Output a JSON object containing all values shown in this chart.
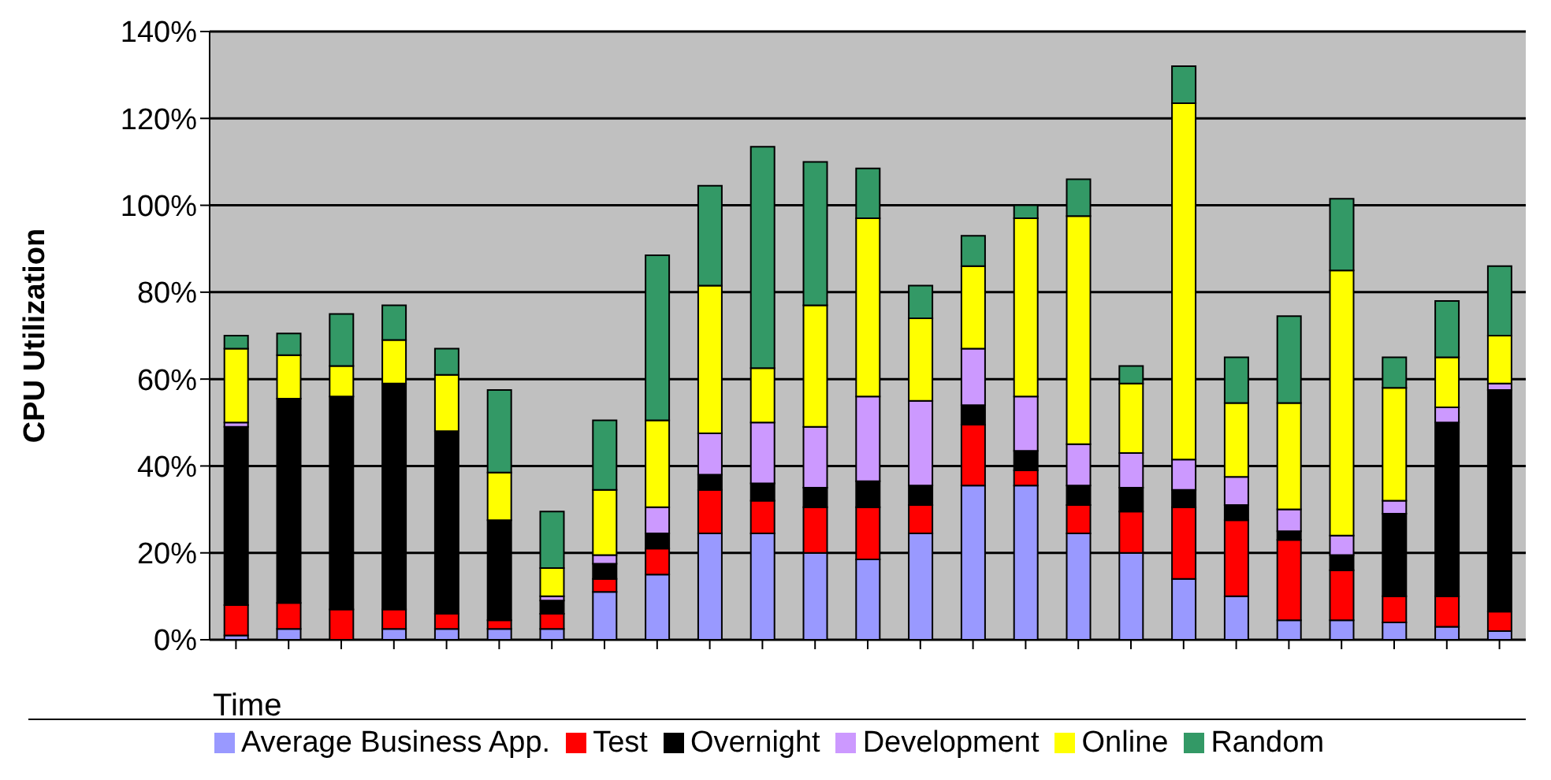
{
  "chart_data": {
    "type": "bar",
    "stacked": true,
    "xlabel": "Time",
    "ylabel": "CPU Utilization",
    "categories": [
      null,
      null,
      null,
      null,
      null,
      null,
      null,
      null,
      null,
      null,
      null,
      null,
      null,
      null,
      null,
      null,
      null,
      null,
      null,
      null,
      null,
      null,
      null,
      null,
      null
    ],
    "series": [
      {
        "name": "Average Business App.",
        "color": "#9999ff",
        "values": [
          1,
          2.5,
          0,
          2.5,
          2.5,
          2.5,
          2.5,
          11,
          15,
          24.5,
          24.5,
          20,
          18.5,
          24.5,
          35.5,
          35.5,
          24.5,
          20,
          14,
          10,
          4.5,
          4.5,
          4,
          3,
          2
        ]
      },
      {
        "name": "Test",
        "color": "#ff0000",
        "values": [
          7,
          6,
          7,
          4.5,
          3.5,
          2,
          3.5,
          3,
          6,
          10,
          7.5,
          10.5,
          12,
          6.5,
          14,
          3.5,
          6.5,
          9.5,
          16.5,
          17.5,
          18.5,
          11.5,
          6,
          7,
          4.5
        ]
      },
      {
        "name": "Overnight",
        "color": "#000000",
        "values": [
          41,
          47,
          49,
          52,
          42,
          23,
          3,
          3.5,
          3.5,
          3.5,
          4,
          4.5,
          6,
          4.5,
          4.5,
          4.5,
          4.5,
          5.5,
          4,
          3.5,
          2,
          3.5,
          19,
          40,
          51
        ]
      },
      {
        "name": "Development",
        "color": "#cc99ff",
        "values": [
          1,
          0,
          0,
          0,
          0,
          0,
          1,
          2,
          6,
          9.5,
          14,
          14,
          19.5,
          19.5,
          13,
          12.5,
          9.5,
          8,
          7,
          6.5,
          5,
          4.5,
          3,
          3.5,
          1.5
        ]
      },
      {
        "name": "Online",
        "color": "#ffff00",
        "values": [
          17,
          10,
          7,
          10,
          13,
          11,
          6.5,
          15,
          20,
          34,
          12.5,
          28,
          41,
          19,
          19,
          41,
          52.5,
          16,
          82,
          17,
          24.5,
          61,
          26,
          11.5,
          11
        ]
      },
      {
        "name": "Random",
        "color": "#339966",
        "values": [
          3,
          5,
          12,
          8,
          6,
          19,
          13,
          16,
          38,
          23,
          51,
          33,
          11.5,
          7.5,
          7,
          3,
          8.5,
          4,
          8.5,
          10.5,
          20,
          16.5,
          7,
          13,
          16
        ]
      }
    ],
    "ylim": [
      0,
      140
    ],
    "yticks": [
      {
        "value": 0,
        "label": "0%"
      },
      {
        "value": 20,
        "label": "20%"
      },
      {
        "value": 40,
        "label": "40%"
      },
      {
        "value": 60,
        "label": "60%"
      },
      {
        "value": 80,
        "label": "80%"
      },
      {
        "value": 100,
        "label": "100%"
      },
      {
        "value": 120,
        "label": "120%"
      },
      {
        "value": 140,
        "label": "140%"
      }
    ],
    "grid": "y",
    "legend": "bottom"
  }
}
